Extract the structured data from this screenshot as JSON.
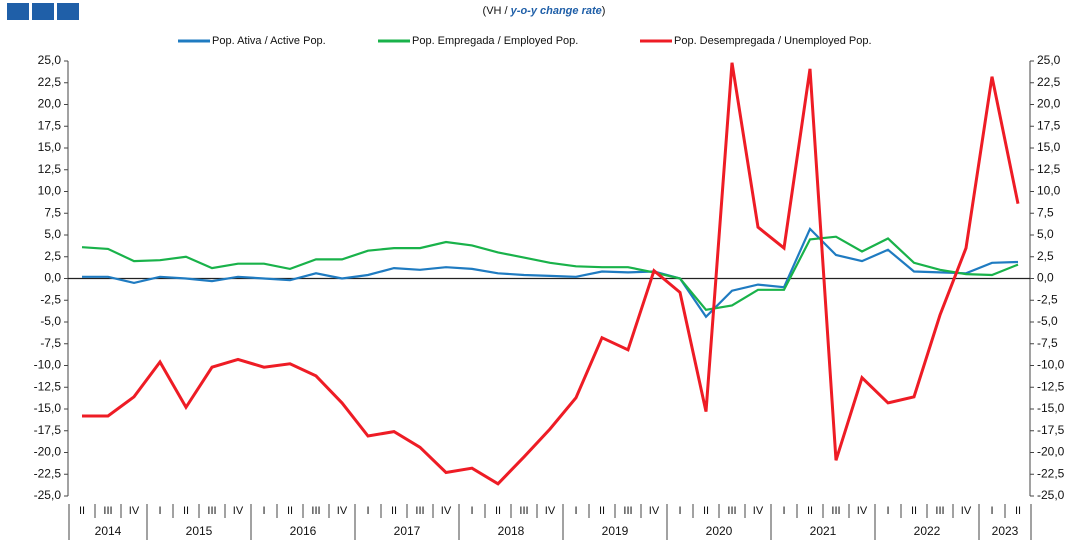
{
  "chart_data": {
    "type": "line",
    "subtitle": {
      "open": "(VH / ",
      "italic": "y-o-y change rate",
      "close": ")"
    },
    "categories": [
      "II",
      "III",
      "IV",
      "I",
      "II",
      "III",
      "IV",
      "I",
      "II",
      "III",
      "IV",
      "I",
      "II",
      "III",
      "IV",
      "I",
      "II",
      "III",
      "IV",
      "I",
      "II",
      "III",
      "IV",
      "I",
      "II",
      "III",
      "IV",
      "I",
      "II",
      "III",
      "IV",
      "I",
      "II",
      "III",
      "IV",
      "I",
      "II"
    ],
    "year_groups": [
      {
        "label": "2014",
        "count": 3
      },
      {
        "label": "2015",
        "count": 4
      },
      {
        "label": "2016",
        "count": 4
      },
      {
        "label": "2017",
        "count": 4
      },
      {
        "label": "2018",
        "count": 4
      },
      {
        "label": "2019",
        "count": 4
      },
      {
        "label": "2020",
        "count": 4
      },
      {
        "label": "2021",
        "count": 4
      },
      {
        "label": "2022",
        "count": 4
      },
      {
        "label": "2023",
        "count": 2
      }
    ],
    "series": [
      {
        "name": "Pop. Ativa / Active Pop.",
        "color": "#1f7bc1",
        "values": [
          0.2,
          0.2,
          -0.5,
          0.2,
          0,
          -0.3,
          0.2,
          0,
          -0.2,
          0.6,
          0,
          0.4,
          1.2,
          1.0,
          1.3,
          1.1,
          0.6,
          0.4,
          0.3,
          0.2,
          0.8,
          0.7,
          0.8,
          0,
          -4.4,
          -1.4,
          -0.7,
          -1.0,
          5.7,
          2.7,
          2.0,
          3.3,
          0.8,
          0.7,
          0.6,
          1.8,
          1.9
        ]
      },
      {
        "name": "Pop. Empregada / Employed Pop.",
        "color": "#19b24a",
        "values": [
          3.6,
          3.4,
          2.0,
          2.1,
          2.5,
          1.2,
          1.7,
          1.7,
          1.1,
          2.2,
          2.2,
          3.2,
          3.5,
          3.5,
          4.2,
          3.8,
          3.0,
          2.4,
          1.8,
          1.4,
          1.3,
          1.3,
          0.7,
          0,
          -3.6,
          -3.1,
          -1.3,
          -1.3,
          4.5,
          4.8,
          3.1,
          4.6,
          1.8,
          1.0,
          0.5,
          0.4,
          1.6
        ]
      },
      {
        "name": "Pop. Desempregada / Unemployed Pop.",
        "color": "#ee1c25",
        "values": [
          -15.8,
          -15.8,
          -13.6,
          -9.6,
          -14.8,
          -10.2,
          -9.3,
          -10.2,
          -9.8,
          -11.2,
          -14.3,
          -18.1,
          -17.6,
          -19.4,
          -22.3,
          -21.8,
          -23.6,
          -20.5,
          -17.3,
          -13.7,
          -6.8,
          -8.2,
          0.9,
          -1.6,
          -15.3,
          24.8,
          5.9,
          3.5,
          24.1,
          -20.9,
          -11.4,
          -14.3,
          -13.6,
          -4.2,
          3.5,
          23.2,
          8.6
        ]
      }
    ],
    "ylim": [
      -25,
      25
    ],
    "yticks": [
      {
        "value": -25,
        "label": "-25,0"
      },
      {
        "value": -22.5,
        "label": "-22,5"
      },
      {
        "value": -20,
        "label": "-20,0"
      },
      {
        "value": -17.5,
        "label": "-17,5"
      },
      {
        "value": -15,
        "label": "-15,0"
      },
      {
        "value": -12.5,
        "label": "-12,5"
      },
      {
        "value": -10,
        "label": "-10,0"
      },
      {
        "value": -7.5,
        "label": "-7,5"
      },
      {
        "value": -5,
        "label": "-5,0"
      },
      {
        "value": -2.5,
        "label": "-2,5"
      },
      {
        "value": 0,
        "label": "0,0"
      },
      {
        "value": 2.5,
        "label": "2,5"
      },
      {
        "value": 5,
        "label": "5,0"
      },
      {
        "value": 7.5,
        "label": "7,5"
      },
      {
        "value": 10,
        "label": "10,0"
      },
      {
        "value": 12.5,
        "label": "12,5"
      },
      {
        "value": 15,
        "label": "15,0"
      },
      {
        "value": 17.5,
        "label": "17,5"
      },
      {
        "value": 20,
        "label": "20,0"
      },
      {
        "value": 22.5,
        "label": "22,5"
      },
      {
        "value": 25,
        "label": "25,0"
      }
    ],
    "right_axis": true,
    "grid": false
  }
}
